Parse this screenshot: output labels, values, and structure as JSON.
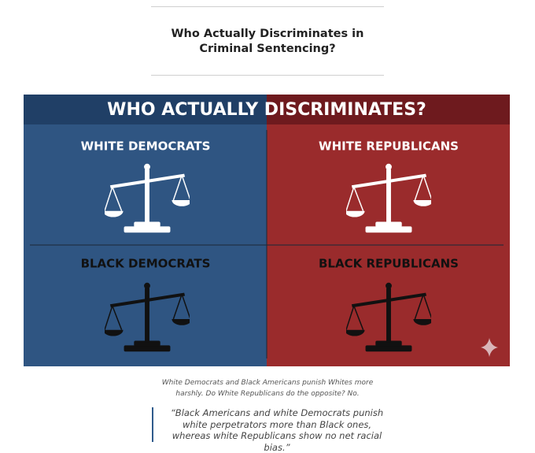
{
  "header": {
    "title": "Who Actually Discriminates in Criminal Sentencing?"
  },
  "figure": {
    "banner": "WHO ACTUALLY DISCRIMINATES?",
    "quadrants": [
      "WHITE DEMOCRATS",
      "WHITE REPUBLICANS",
      "BLACK DEMOCRATS",
      "BLACK REPUBLICANS"
    ]
  },
  "caption": "White Democrats and Black Americans punish Whites more harshly. Do White Republicans do the opposite? No.",
  "quote": "“Black Americans and white Democrats punish white perpetrators more than Black ones, whereas white Republicans show no net racial bias.”"
}
